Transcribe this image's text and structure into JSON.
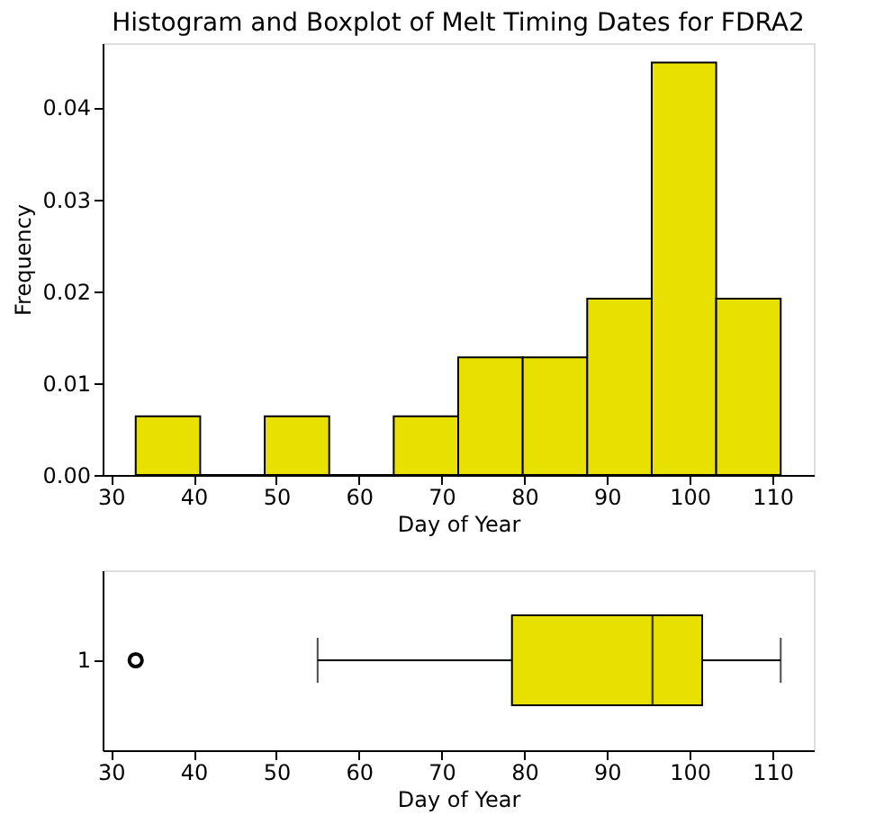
{
  "chart_data": [
    {
      "type": "histogram",
      "title": "Histogram and Boxplot of Melt Timing Dates for FDRA2",
      "xlabel": "Day of Year",
      "ylabel": "Frequency",
      "color": "#e8e000",
      "bins": [
        33,
        40.8,
        48.6,
        56.4,
        64.2,
        72,
        79.8,
        87.6,
        95.4,
        103.2,
        111
      ],
      "values": [
        0.0064,
        0,
        0.0064,
        0,
        0.0064,
        0.0128,
        0.0128,
        0.0192,
        0.0449,
        0.0192
      ],
      "xlim": [
        29,
        115
      ],
      "xticks": [
        30,
        40,
        50,
        60,
        70,
        80,
        90,
        100,
        110
      ],
      "ylim": [
        0,
        0.047
      ],
      "yticks": [
        {
          "value": 0,
          "label": "0.00"
        },
        {
          "value": 0.01,
          "label": "0.01"
        },
        {
          "value": 0.02,
          "label": "0.02"
        },
        {
          "value": 0.03,
          "label": "0.03"
        },
        {
          "value": 0.04,
          "label": "0.04"
        }
      ],
      "grid": false
    },
    {
      "type": "box",
      "orientation": "horizontal",
      "xlabel": "Day of Year",
      "color": "#e8e000",
      "categories": [
        "1"
      ],
      "boxes": [
        {
          "low": 55,
          "q1": 78.5,
          "median": 95.5,
          "q3": 101.5,
          "high": 111,
          "outliers": [
            33
          ]
        }
      ],
      "xlim": [
        29,
        115
      ],
      "xticks": [
        30,
        40,
        50,
        60,
        70,
        80,
        90,
        100,
        110
      ],
      "grid": false
    }
  ]
}
